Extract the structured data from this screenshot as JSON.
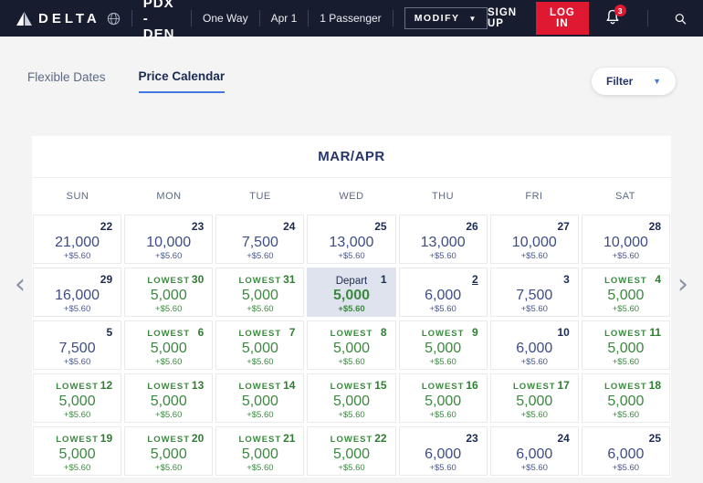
{
  "header": {
    "brand": "DELTA",
    "route": "PDX - DEN",
    "trip_type": "One Way",
    "date": "Apr 1",
    "passengers": "1 Passenger",
    "modify_label": "MODIFY",
    "sign_up_label": "SIGN UP",
    "log_in_label": "LOG IN",
    "notification_count": "3"
  },
  "tabs": [
    {
      "label": "Flexible Dates",
      "active": false
    },
    {
      "label": "Price Calendar",
      "active": true
    }
  ],
  "filter": {
    "label": "Filter"
  },
  "calendar": {
    "month_label": "MAR/APR",
    "day_headers": [
      "SUN",
      "MON",
      "TUE",
      "WED",
      "THU",
      "FRI",
      "SAT"
    ],
    "lowest_label": "LOWEST",
    "depart_label": "Depart",
    "fee": "+$5.60",
    "rows": [
      [
        {
          "date": "22",
          "price": "21,000",
          "type": "regular"
        },
        {
          "date": "23",
          "price": "10,000",
          "type": "regular"
        },
        {
          "date": "24",
          "price": "7,500",
          "type": "regular"
        },
        {
          "date": "25",
          "price": "13,000",
          "type": "regular"
        },
        {
          "date": "26",
          "price": "13,000",
          "type": "regular"
        },
        {
          "date": "27",
          "price": "10,000",
          "type": "regular"
        },
        {
          "date": "28",
          "price": "10,000",
          "type": "regular"
        }
      ],
      [
        {
          "date": "29",
          "price": "16,000",
          "type": "regular"
        },
        {
          "date": "30",
          "price": "5,000",
          "type": "lowest"
        },
        {
          "date": "31",
          "price": "5,000",
          "type": "lowest"
        },
        {
          "date": "1",
          "price": "5,000",
          "type": "depart"
        },
        {
          "date": "2",
          "price": "6,000",
          "type": "regular",
          "underline": true
        },
        {
          "date": "3",
          "price": "7,500",
          "type": "regular"
        },
        {
          "date": "4",
          "price": "5,000",
          "type": "lowest"
        }
      ],
      [
        {
          "date": "5",
          "price": "7,500",
          "type": "regular"
        },
        {
          "date": "6",
          "price": "5,000",
          "type": "lowest"
        },
        {
          "date": "7",
          "price": "5,000",
          "type": "lowest"
        },
        {
          "date": "8",
          "price": "5,000",
          "type": "lowest"
        },
        {
          "date": "9",
          "price": "5,000",
          "type": "lowest"
        },
        {
          "date": "10",
          "price": "6,000",
          "type": "regular"
        },
        {
          "date": "11",
          "price": "5,000",
          "type": "lowest"
        }
      ],
      [
        {
          "date": "12",
          "price": "5,000",
          "type": "lowest"
        },
        {
          "date": "13",
          "price": "5,000",
          "type": "lowest"
        },
        {
          "date": "14",
          "price": "5,000",
          "type": "lowest"
        },
        {
          "date": "15",
          "price": "5,000",
          "type": "lowest"
        },
        {
          "date": "16",
          "price": "5,000",
          "type": "lowest"
        },
        {
          "date": "17",
          "price": "5,000",
          "type": "lowest"
        },
        {
          "date": "18",
          "price": "5,000",
          "type": "lowest"
        }
      ],
      [
        {
          "date": "19",
          "price": "5,000",
          "type": "lowest"
        },
        {
          "date": "20",
          "price": "5,000",
          "type": "lowest"
        },
        {
          "date": "21",
          "price": "5,000",
          "type": "lowest"
        },
        {
          "date": "22",
          "price": "5,000",
          "type": "lowest"
        },
        {
          "date": "23",
          "price": "6,000",
          "type": "regular"
        },
        {
          "date": "24",
          "price": "6,000",
          "type": "regular"
        },
        {
          "date": "25",
          "price": "6,000",
          "type": "regular"
        }
      ]
    ]
  },
  "colors": {
    "topbar_bg": "#171d2f",
    "delta_red": "#e01933",
    "navy_text": "#26356b",
    "price_navy": "#3e4d85",
    "lowest_green": "#3c8840",
    "tab_underline_blue": "#4378e1",
    "depart_cell_bg": "#dee3ee",
    "page_bg": "#f4f4f5"
  }
}
